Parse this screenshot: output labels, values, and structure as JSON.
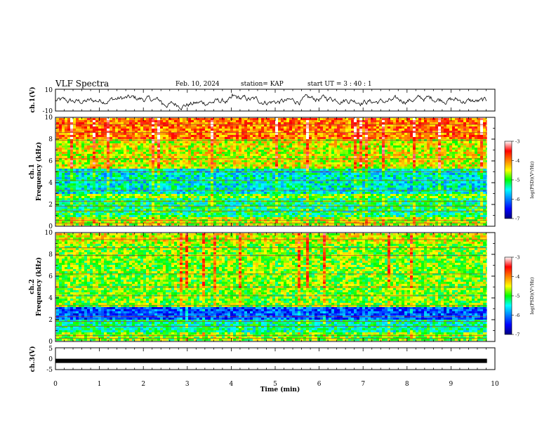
{
  "header": {
    "title": "VLF Spectra",
    "date": "Feb. 10, 2024",
    "station": "station= KAP",
    "start_ut": "start UT =  3 : 40 : 1"
  },
  "chart_data": [
    {
      "type": "line",
      "panel": "ch1-waveform",
      "ylabel": "ch.1(V)",
      "ylim": [
        -10,
        10
      ],
      "yticks": [
        "10",
        "-10"
      ],
      "xlim": [
        0,
        10
      ]
    },
    {
      "type": "heatmap",
      "panel": "ch1-spectrogram",
      "ylabel": "ch.1",
      "ylabel2": "Frequency (kHz)",
      "ylim": [
        0,
        10
      ],
      "yticks": [
        "0",
        "2",
        "4",
        "6",
        "8",
        "10"
      ],
      "xlim": [
        0,
        10
      ],
      "data_extent_min": 9.8,
      "colorbar": {
        "label": "log(PSD)(V²/Hz)",
        "ticks": [
          "-3",
          "-4",
          "-5",
          "-6",
          "-7"
        ],
        "range": [
          -7,
          -3
        ]
      }
    },
    {
      "type": "heatmap",
      "panel": "ch2-spectrogram",
      "ylabel": "ch.2",
      "ylabel2": "Frequency (kHz)",
      "ylim": [
        0,
        10
      ],
      "yticks": [
        "0",
        "2",
        "4",
        "6",
        "8",
        "10"
      ],
      "xlim": [
        0,
        10
      ],
      "data_extent_min": 9.8,
      "colorbar": {
        "label": "log(PSD)(V²/Hz)",
        "ticks": [
          "-3",
          "-4",
          "-5",
          "-6",
          "-7"
        ],
        "range": [
          -7,
          -3
        ]
      }
    },
    {
      "type": "line",
      "panel": "ch3-waveform",
      "ylabel": "ch.3(V)",
      "ylim": [
        -5,
        5
      ],
      "yticks": [
        "5",
        "0",
        "-5"
      ],
      "xlim": [
        0,
        10
      ],
      "level": -1
    }
  ],
  "xaxis": {
    "label": "Time (min)",
    "ticks": [
      "0",
      "1",
      "2",
      "3",
      "4",
      "5",
      "6",
      "7",
      "8",
      "9",
      "10"
    ]
  }
}
